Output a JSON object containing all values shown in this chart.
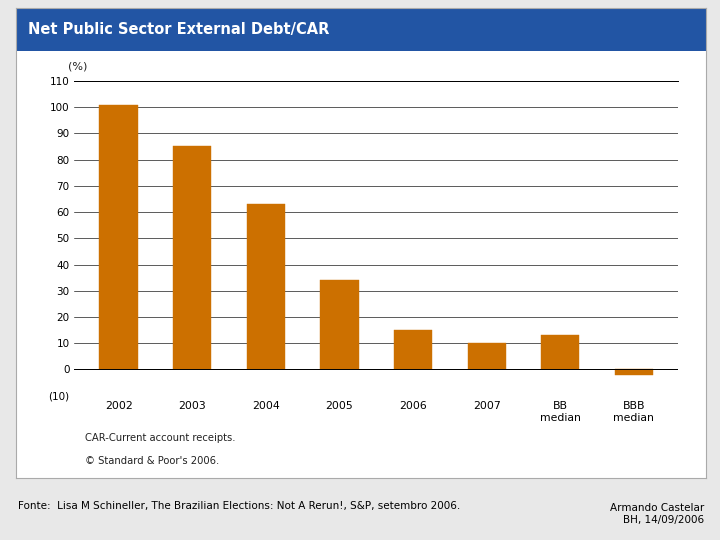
{
  "title": "Net Public Sector External Debt/CAR",
  "pct_label": "(%)",
  "categories": [
    "2002",
    "2003",
    "2004",
    "2005",
    "2006",
    "2007",
    "BB\nmedian",
    "BBB\nmedian"
  ],
  "values": [
    101,
    85,
    63,
    34,
    15,
    10,
    13,
    -2
  ],
  "bar_color": "#cc7000",
  "ylim_min": -10,
  "ylim_max": 110,
  "yticks": [
    -10,
    0,
    10,
    20,
    30,
    40,
    50,
    60,
    70,
    80,
    90,
    100,
    110
  ],
  "ytick_labels": [
    "(10)",
    "0",
    "10",
    "20",
    "30",
    "40",
    "50",
    "60",
    "70",
    "80",
    "90",
    "100",
    "110"
  ],
  "title_bg_color": "#2255a4",
  "title_text_color": "#ffffff",
  "chart_bg_color": "#ffffff",
  "panel_bg_color": "#ffffff",
  "fig_bg_color": "#e8e8e8",
  "note1": "CAR-Current account receipts.",
  "note2": "© Standard & Poor's 2006.",
  "footer_left": "Fonte:  Lisa M Schineller, The Brazilian Elections: Not A Rerun!, S&P, setembro 2006.",
  "footer_right": "Armando Castelar\nBH, 14/09/2006"
}
